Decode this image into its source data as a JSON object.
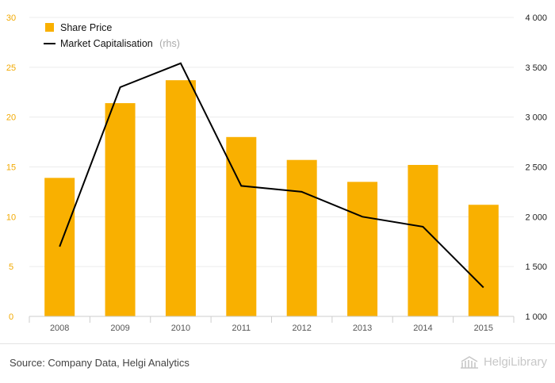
{
  "chart_data": {
    "type": "bar",
    "categories": [
      "2008",
      "2009",
      "2010",
      "2011",
      "2012",
      "2013",
      "2014",
      "2015"
    ],
    "series": [
      {
        "name": "Share Price",
        "type": "bar",
        "axis": "left",
        "color": "#f9b000",
        "values": [
          13.9,
          21.4,
          23.7,
          18.0,
          15.7,
          13.5,
          15.2,
          11.2
        ]
      },
      {
        "name": "Market Capitalisation",
        "name_note": "(rhs)",
        "type": "line",
        "axis": "right",
        "color": "#000000",
        "values": [
          1700,
          3300,
          3540,
          2310,
          2250,
          2000,
          1900,
          1290
        ]
      }
    ],
    "y_left": {
      "ylim": [
        0,
        30
      ],
      "ticks": [
        "0",
        "5",
        "10",
        "15",
        "20",
        "25",
        "30"
      ]
    },
    "y_right": {
      "ylim": [
        1000,
        4000
      ],
      "ticks": [
        "1 000",
        "1 500",
        "2 000",
        "2 500",
        "3 000",
        "3 500",
        "4 000"
      ]
    },
    "grid": true,
    "legend": "top-left"
  },
  "footer": {
    "source": "Source: Company Data, Helgi Analytics",
    "brand": "HelgiLibrary"
  }
}
